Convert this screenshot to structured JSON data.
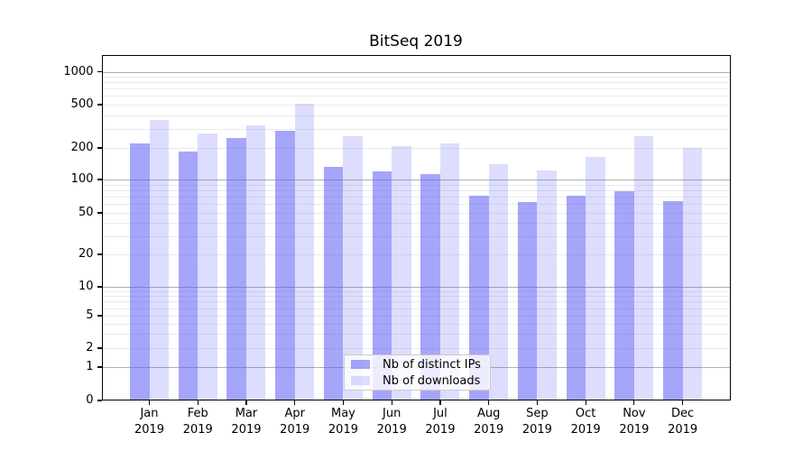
{
  "chart_data": {
    "type": "bar",
    "title": "BitSeq 2019",
    "categories": [
      "Jan 2019",
      "Feb 2019",
      "Mar 2019",
      "Apr 2019",
      "May 2019",
      "Jun 2019",
      "Jul 2019",
      "Aug 2019",
      "Sep 2019",
      "Oct 2019",
      "Nov 2019",
      "Dec 2019"
    ],
    "series": [
      {
        "name": "Nb of distinct IPs",
        "color": "#5555f5",
        "opacity": 0.53,
        "values": [
          220,
          185,
          245,
          290,
          132,
          120,
          112,
          71,
          63,
          71,
          79,
          64
        ]
      },
      {
        "name": "Nb of downloads",
        "color": "#5555f5",
        "opacity": 0.2,
        "values": [
          360,
          273,
          320,
          510,
          255,
          206,
          218,
          140,
          121,
          163,
          255,
          200
        ]
      }
    ],
    "xlabel": "",
    "ylabel": "",
    "yscale": "symlog",
    "yticks": [
      0,
      1,
      2,
      5,
      10,
      20,
      50,
      100,
      200,
      500,
      1000
    ],
    "ylim": [
      0,
      1500
    ],
    "grid": "horizontal, log major + minor",
    "legend_position": "lower center",
    "colors": {
      "bar_base": "#5555f5",
      "major_grid": "#b0b0b0",
      "minor_grid": "#ebebeb",
      "axis": "#000000",
      "background": "#ffffff",
      "legend_border": "#cccccc"
    }
  }
}
